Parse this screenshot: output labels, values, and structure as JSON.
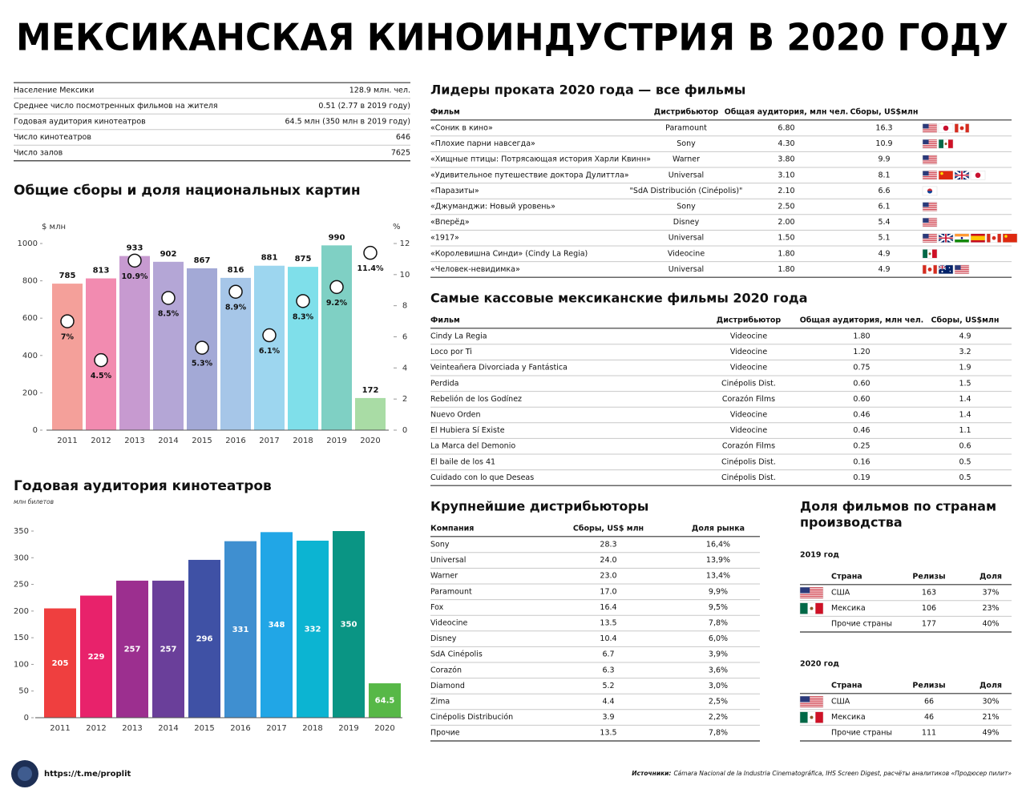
{
  "title": "МЕКСИКАНСКАЯ КИНОИНДУСТРИЯ В 2020 ГОДУ",
  "stats": {
    "rows": [
      [
        "Население Мексики",
        "128.9 млн. чел."
      ],
      [
        "Среднее число посмотренных фильмов на жителя",
        "0.51 (2.77 в 2019 году)"
      ],
      [
        "Годовая аудитория кинотеатров",
        "64.5 млн (350 млн в 2019 году)"
      ],
      [
        "Число кинотеатров",
        "646"
      ],
      [
        "Число залов",
        "7625"
      ]
    ]
  },
  "chart_data": [
    {
      "type": "bar",
      "title": "Общие сборы и доля национальных картин",
      "y_label": "$ млн",
      "y2_label": "%",
      "categories": [
        "2011",
        "2012",
        "2013",
        "2014",
        "2015",
        "2016",
        "2017",
        "2018",
        "2019",
        "2020"
      ],
      "series": [
        {
          "colors": [
            "#f4a09a",
            "#f28bb0",
            "#c79ad0",
            "#b4a6d6",
            "#a3a9d6",
            "#a6c6e8",
            "#9dd6ef",
            "#7fdfea",
            "#7fd0c4",
            "#a9dca5"
          ],
          "values": [
            785,
            813,
            933,
            902,
            867,
            816,
            881,
            875,
            990,
            172
          ]
        },
        {
          "type": "scatter",
          "axis": "y2",
          "color": "#ffffff",
          "values": [
            7,
            4.5,
            10.9,
            8.5,
            5.3,
            8.9,
            6.1,
            8.3,
            9.2,
            11.4
          ],
          "value_labels": [
            "7%",
            "4.5%",
            "10.9%",
            "8.5%",
            "5.3%",
            "8.9%",
            "6.1%",
            "8.3%",
            "9.2%",
            "11.4%"
          ]
        }
      ],
      "ylim": [
        0,
        1000
      ],
      "yticks": [
        0,
        200,
        400,
        600,
        800,
        1000
      ],
      "y2lim": [
        0,
        12
      ],
      "y2ticks": [
        0,
        2,
        4,
        6,
        8,
        10,
        12
      ],
      "grid": false
    },
    {
      "type": "bar",
      "title": "Годовая аудитория кинотеатров",
      "subtitle": "млн билетов",
      "categories": [
        "2011",
        "2012",
        "2013",
        "2014",
        "2015",
        "2016",
        "2017",
        "2018",
        "2019",
        "2020"
      ],
      "series": [
        {
          "colors": [
            "#ef3f3f",
            "#e8226b",
            "#9c2f8f",
            "#6a3f9a",
            "#3f51a5",
            "#3f8fd0",
            "#21a6e6",
            "#0cb4d2",
            "#0a9584",
            "#57b847"
          ],
          "values": [
            205,
            229,
            257,
            257,
            296,
            331,
            348,
            332,
            350,
            64.5
          ]
        }
      ],
      "ylim": [
        0,
        350
      ],
      "yticks": [
        0,
        50,
        100,
        150,
        200,
        250,
        300,
        350
      ],
      "grid": false
    }
  ],
  "top_films": {
    "title": "Лидеры проката 2020 года — все фильмы",
    "columns": [
      "Фильм",
      "Дистрибьютор",
      "Общая аудитория, млн чел.",
      "Сборы, US$млн"
    ],
    "rows": [
      [
        "«Соник в кино»",
        "Paramount",
        "6.80",
        "16.3"
      ],
      [
        "«Плохие парни навсегда»",
        "Sony",
        "4.30",
        "10.9"
      ],
      [
        "«Хищные птицы: Потрясающая история Харли Квинн»",
        "Warner",
        "3.80",
        "9.9"
      ],
      [
        "«Удивительное путешествие доктора Дулиттла»",
        "Universal",
        "3.10",
        "8.1"
      ],
      [
        "«Паразиты»",
        "\"SdA Distribución (Cinépolis)\"",
        "2.10",
        "6.6"
      ],
      [
        "«Джуманджи: Новый уровень»",
        "Sony",
        "2.50",
        "6.1"
      ],
      [
        "«Вперёд»",
        "Disney",
        "2.00",
        "5.4"
      ],
      [
        "«1917»",
        "Universal",
        "1.50",
        "5.1"
      ],
      [
        "«Королевишна Синди» (Cindy La Regia)",
        "Videocine",
        "1.80",
        "4.9"
      ],
      [
        "«Человек-невидимка»",
        "Universal",
        "1.80",
        "4.9"
      ]
    ]
  },
  "mexican_films": {
    "title": "Самые кассовые мексиканские фильмы 2020 года",
    "columns": [
      "Фильм",
      "Дистрибьютор",
      "Общая аудитория, млн чел.",
      "Сборы, US$млн"
    ],
    "rows": [
      [
        "Cindy La Regia",
        "Videocine",
        "1.80",
        "4.9"
      ],
      [
        "Loco por Ti",
        "Videocine",
        "1.20",
        "3.2"
      ],
      [
        "Veinteañera Divorciada y Fantástica",
        "Videocine",
        "0.75",
        "1.9"
      ],
      [
        "Perdida",
        "Cinépolis Dist.",
        "0.60",
        "1.5"
      ],
      [
        "Rebelión de los Godínez",
        "Corazón Films",
        "0.60",
        "1.4"
      ],
      [
        "Nuevo Orden",
        "Videocine",
        "0.46",
        "1.4"
      ],
      [
        "El Hubiera Sí Existe",
        "Videocine",
        "0.46",
        "1.1"
      ],
      [
        "La Marca del Demonio",
        "Corazón Films",
        "0.25",
        "0.6"
      ],
      [
        "El baile de los 41",
        "Cinépolis Dist.",
        "0.16",
        "0.5"
      ],
      [
        "Cuidado con lo que Deseas",
        "Cinépolis Dist.",
        "0.19",
        "0.5"
      ]
    ]
  },
  "distributors": {
    "title": "Крупнейшие дистрибьюторы",
    "columns": [
      "Компания",
      "Сборы, US$ млн",
      "Доля рынка"
    ],
    "rows": [
      [
        "Sony",
        "28.3",
        "16,4%"
      ],
      [
        "Universal",
        "24.0",
        "13,9%"
      ],
      [
        "Warner",
        "23.0",
        "13,4%"
      ],
      [
        "Paramount",
        "17.0",
        "9,9%"
      ],
      [
        "Fox",
        "16.4",
        "9,5%"
      ],
      [
        "Videocine",
        "13.5",
        "7,8%"
      ],
      [
        "Disney",
        "10.4",
        "6,0%"
      ],
      [
        "SdA Cinépolis",
        "6.7",
        "3,9%"
      ],
      [
        "Corazón",
        "6.3",
        "3,6%"
      ],
      [
        "Diamond",
        "5.2",
        "3,0%"
      ],
      [
        "Zima",
        "4.4",
        "2,5%"
      ],
      [
        "Cinépolis Distribución",
        "3.9",
        "2,2%"
      ],
      [
        "Прочие",
        "13.5",
        "7,8%"
      ]
    ]
  },
  "country_share": {
    "title": [
      "Доля фильмов по странам",
      "производства"
    ],
    "tables": [
      {
        "title": "2019 год",
        "columns": [
          "Страна",
          "Релизы",
          "Доля"
        ],
        "rows": [
          [
            "США",
            "163",
            "37%"
          ],
          [
            "Мексика",
            "106",
            "23%"
          ],
          [
            "Прочие страны",
            "177",
            "40%"
          ]
        ]
      },
      {
        "title": "2020 год",
        "columns": [
          "Страна",
          "Релизы",
          "Доля"
        ],
        "rows": [
          [
            "США",
            "66",
            "30%"
          ],
          [
            "Мексика",
            "46",
            "21%"
          ],
          [
            "Прочие страны",
            "111",
            "49%"
          ]
        ]
      }
    ]
  },
  "footer": {
    "link": "https://t.me/proplit",
    "sources_label": "Источники:",
    "sources": "Cámara Nacional de la Industria Cinematográfica, IHS Screen Digest, расчёты аналитиков «Продюсер пилит»"
  }
}
